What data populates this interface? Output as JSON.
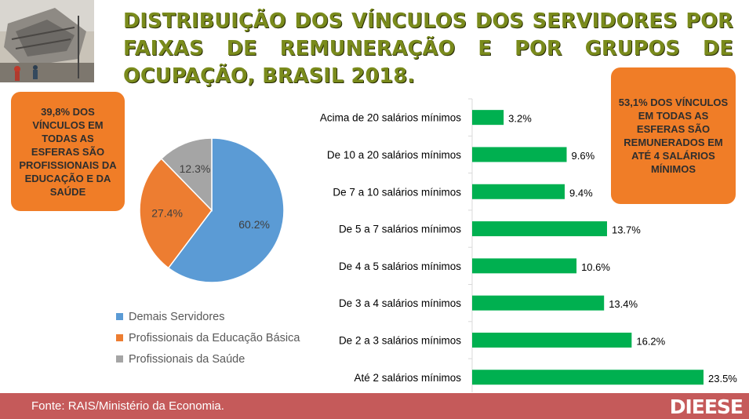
{
  "title": "DISTRIBUIÇÃO DOS VÍNCULOS DOS SERVIDORES POR FAIXAS DE REMUNERAÇÃO E POR GRUPOS DE OCUPAÇÃO, BRASIL 2018.",
  "callout_left": "39,8% DOS VÍNCULOS EM TODAS AS ESFERAS SÃO PROFISSIONAIS DA EDUCAÇÃO E DA SAÚDE",
  "callout_right": "53,1% DOS VÍNCULOS EM TODAS AS ESFERAS SÃO REMUNERADOS EM ATÉ 4 SALÁRIOS MÍNIMOS",
  "footer": {
    "source": "Fonte: RAIS/Ministério da Economia.",
    "logo": "DIEESE"
  },
  "icons": {
    "photo": "collapsed-building-photo"
  },
  "chart_data": [
    {
      "type": "pie",
      "labels": [
        "Demais Servidores",
        "Profissionais da Educação Básica",
        "Profissionais da Saúde"
      ],
      "values": [
        60.2,
        27.4,
        12.3
      ],
      "value_labels": [
        "60.2%",
        "27.4%",
        "12.3%"
      ],
      "colors": [
        "#5b9bd5",
        "#ed7d31",
        "#a5a5a5"
      ],
      "legend_position": "bottom"
    },
    {
      "type": "bar",
      "orientation": "horizontal",
      "categories": [
        "Acima de 20 salários mínimos",
        "De 10 a 20 salários mínimos",
        "De 7 a 10 salários mínimos",
        "De 5 a 7 salários mínimos",
        "De 4 a 5 salários mínimos",
        "De 3 a 4 salários mínimos",
        "De 2 a 3 salários mínimos",
        "Até 2 salários mínimos"
      ],
      "values": [
        3.2,
        9.6,
        9.4,
        13.7,
        10.6,
        13.4,
        16.2,
        23.5
      ],
      "value_labels": [
        "3.2%",
        "9.6%",
        "9.4%",
        "13.7%",
        "10.6%",
        "13.4%",
        "16.2%",
        "23.5%"
      ],
      "color": "#00b050",
      "grid": false
    }
  ]
}
